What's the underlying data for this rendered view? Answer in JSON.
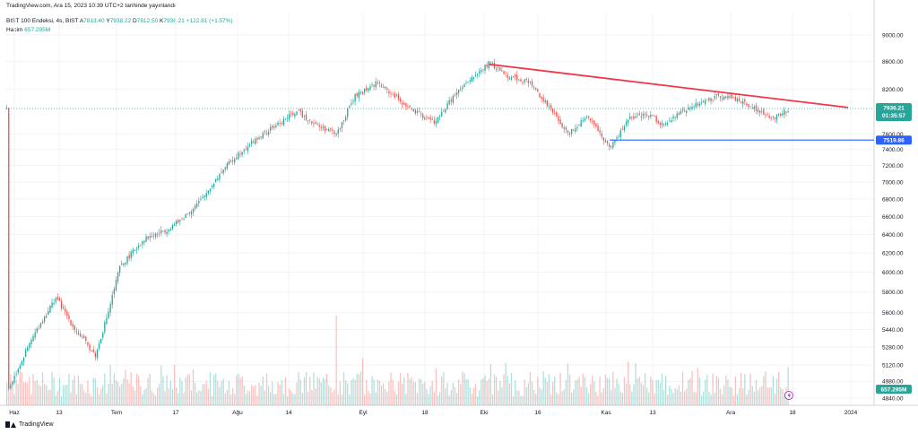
{
  "header": {
    "source": "TradingView.com, Ara 15, 2023 10:39 UTC+2 tarihinde yayınlandı",
    "symbol": "BIST 100 Endeksi, 4s, BIST",
    "ohlc": {
      "open_label": "A",
      "open": "7813.40",
      "high_label": "Y",
      "high": "7938.22",
      "low_label": "D",
      "low": "7812.50",
      "close_label": "K",
      "close": "7936.21",
      "change": "+122.81 (+1.57%)"
    },
    "volume_label": "Hacim",
    "volume_value": "657.295M"
  },
  "footer": {
    "brand": "TradingView"
  },
  "colors": {
    "up": "#26a69a",
    "down": "#ef5350",
    "trend": "#f23645",
    "support": "#2962ff"
  },
  "chart_data": {
    "type": "candlestick",
    "y_ticks": [
      "9000.00",
      "8600.00",
      "8200.00",
      "7600.00",
      "7400.00",
      "7200.00",
      "7000.00",
      "6800.00",
      "6600.00",
      "6400.00",
      "6200.00",
      "6000.00",
      "5800.00",
      "5600.00",
      "5440.00",
      "5280.00",
      "5120.00",
      "4980.00",
      "4840.00"
    ],
    "y_axis_scale": "log",
    "x_ticks": [
      "Haz",
      "13",
      "Tem",
      "17",
      "Ağu",
      "14",
      "Eyl",
      "18",
      "Eki",
      "16",
      "Kas",
      "13",
      "Ara",
      "18",
      "2024"
    ],
    "last_price": "7936.21",
    "countdown": "01:35:57",
    "support_level": "7519.86",
    "last_volume": "657.295M",
    "price_path": [
      [
        "Haz",
        4900
      ],
      [
        "Haz",
        5100
      ],
      [
        "13",
        5400
      ],
      [
        "13",
        5650
      ],
      [
        "13",
        5750
      ],
      [
        "13",
        5480
      ],
      [
        "Tem",
        5200
      ],
      [
        "Tem",
        5600
      ],
      [
        "Tem",
        6050
      ],
      [
        "17",
        6350
      ],
      [
        "17",
        6450
      ],
      [
        "17",
        6550
      ],
      [
        "Ağu",
        6800
      ],
      [
        "Ağu",
        7150
      ],
      [
        "Ağu",
        7400
      ],
      [
        "14",
        7650
      ],
      [
        "14",
        7900
      ],
      [
        "14",
        7700
      ],
      [
        "Eyl",
        7600
      ],
      [
        "Eyl",
        8100
      ],
      [
        "Eyl",
        8300
      ],
      [
        "18",
        7900
      ],
      [
        "18",
        7750
      ],
      [
        "18",
        8100
      ],
      [
        "Eki",
        8580
      ],
      [
        "Eki",
        8400
      ],
      [
        "Eki",
        8300
      ],
      [
        "16",
        7900
      ],
      [
        "16",
        7600
      ],
      [
        "16",
        7850
      ],
      [
        "Kas",
        7400
      ],
      [
        "Kas",
        7800
      ],
      [
        "Kas",
        7850
      ],
      [
        "13",
        7700
      ],
      [
        "13",
        7900
      ],
      [
        "13",
        8120
      ],
      [
        "Ara",
        8050
      ],
      [
        "Ara",
        7800
      ],
      [
        "18",
        7936
      ]
    ],
    "drawings": [
      {
        "type": "trendline",
        "from": [
          "Eki",
          8560
        ],
        "to": [
          "2024",
          7950
        ]
      },
      {
        "type": "horizontal",
        "from": [
          "Kas",
          7519.86
        ],
        "to": [
          "2024",
          7519.86
        ]
      }
    ],
    "grid": true
  }
}
